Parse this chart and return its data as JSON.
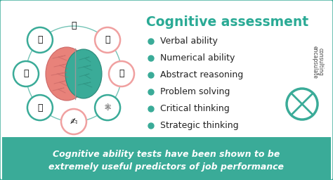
{
  "bg_color": "#ffffff",
  "teal_color": "#3aab98",
  "title": "Cognitive assessment",
  "title_color": "#2aaa95",
  "bullet_items": [
    "Verbal ability",
    "Numerical ability",
    "Abstract reasoning",
    "Problem solving",
    "Critical thinking",
    "Strategic thinking"
  ],
  "bullet_color": "#222222",
  "footer_bg": "#3aab98",
  "footer_text_line1": "Cognitive ability tests have been shown to be",
  "footer_text_line2": "extremely useful predictors of job performance",
  "footer_text_color": "#ffffff",
  "border_color": "#3aab98",
  "encapsulate_line1": "encapsulate",
  "encapsulate_line2": "consulting",
  "brain_left_color": "#e8827a",
  "brain_right_color": "#3aab98",
  "pink_circle_color": "#f0a0a0",
  "teal_circle_color": "#3aab98",
  "bullet_dot_color": "#3aab98",
  "fig_width": 4.74,
  "fig_height": 2.56,
  "dpi": 100
}
